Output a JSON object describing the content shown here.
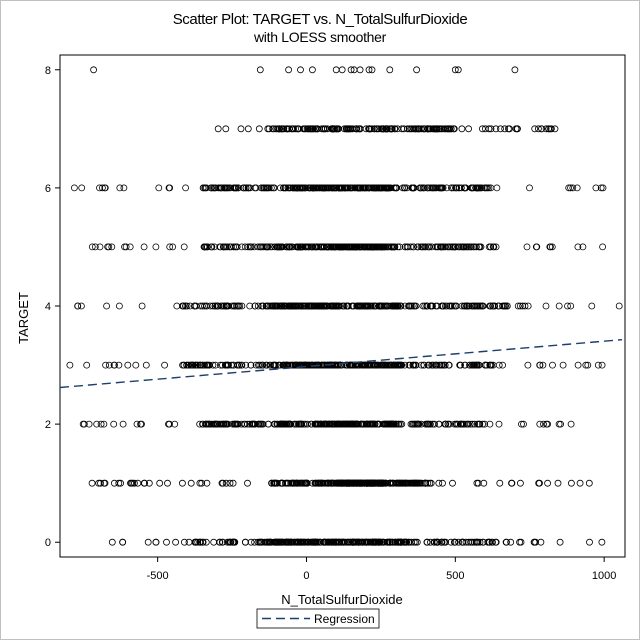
{
  "chart_data": {
    "type": "scatter",
    "title": "Scatter Plot: TARGET vs. N_TotalSulfurDioxide",
    "subtitle": "with LOESS smoother",
    "xlabel": "N_TotalSulfurDioxide",
    "ylabel": "TARGET",
    "xlim": [
      -828,
      1070
    ],
    "ylim": [
      -0.25,
      8.25
    ],
    "xticks": [
      -500,
      0,
      500,
      1000
    ],
    "yticks": [
      0,
      2,
      4,
      6,
      8
    ],
    "grid": false,
    "legend_position": "bottom-center",
    "marker_color": "#000000",
    "line_color": "#1f3f6e",
    "series": [
      {
        "kind": "scatter",
        "groups": [
          {
            "y": 0,
            "x_range": [
              -820,
              1000
            ],
            "dense_range": [
              -380,
              640
            ],
            "core_range": [
              -120,
              320
            ]
          },
          {
            "y": 1,
            "x_range": [
              -720,
              950
            ],
            "dense_range": [
              -120,
              420
            ],
            "core_range": [
              100,
              260
            ],
            "outliers": [
              -720,
              -680,
              -528,
              780,
              890,
              950
            ]
          },
          {
            "y": 2,
            "x_range": [
              -750,
              1000
            ],
            "dense_range": [
              -350,
              620
            ],
            "core_range": [
              -100,
              300
            ],
            "outliers": [
              -750
            ]
          },
          {
            "y": 3,
            "x_range": [
              -800,
              1050
            ],
            "dense_range": [
              -420,
              660
            ],
            "core_range": [
              -80,
              320
            ]
          },
          {
            "y": 4,
            "x_range": [
              -800,
              1060
            ],
            "dense_range": [
              -420,
              680
            ],
            "core_range": [
              -100,
              320
            ]
          },
          {
            "y": 5,
            "x_range": [
              -740,
              1020
            ],
            "dense_range": [
              -360,
              640
            ],
            "core_range": [
              -60,
              300
            ]
          },
          {
            "y": 6,
            "x_range": [
              -780,
              1000
            ],
            "dense_range": [
              -350,
              620
            ],
            "core_range": [
              -60,
              280
            ]
          },
          {
            "y": 7,
            "x_range": [
              -300,
              840
            ],
            "dense_range": [
              -150,
              500
            ],
            "core_range": [
              80,
              240
            ],
            "outliers": [
              840
            ]
          },
          {
            "y": 8,
            "x_range": [
              -715,
              700
            ],
            "dense_range": [
              -50,
              300
            ],
            "core_range": [
              100,
              220
            ],
            "outliers": [
              -715,
              -155,
              -60,
              -20,
              20,
              100,
              120,
              150,
              160,
              180,
              210,
              220,
              280,
              370,
              500,
              510,
              700
            ]
          }
        ]
      },
      {
        "kind": "line",
        "name": "Regression",
        "style": "dashed",
        "x": [
          -828,
          1060
        ],
        "y": [
          2.62,
          3.43
        ]
      }
    ]
  }
}
